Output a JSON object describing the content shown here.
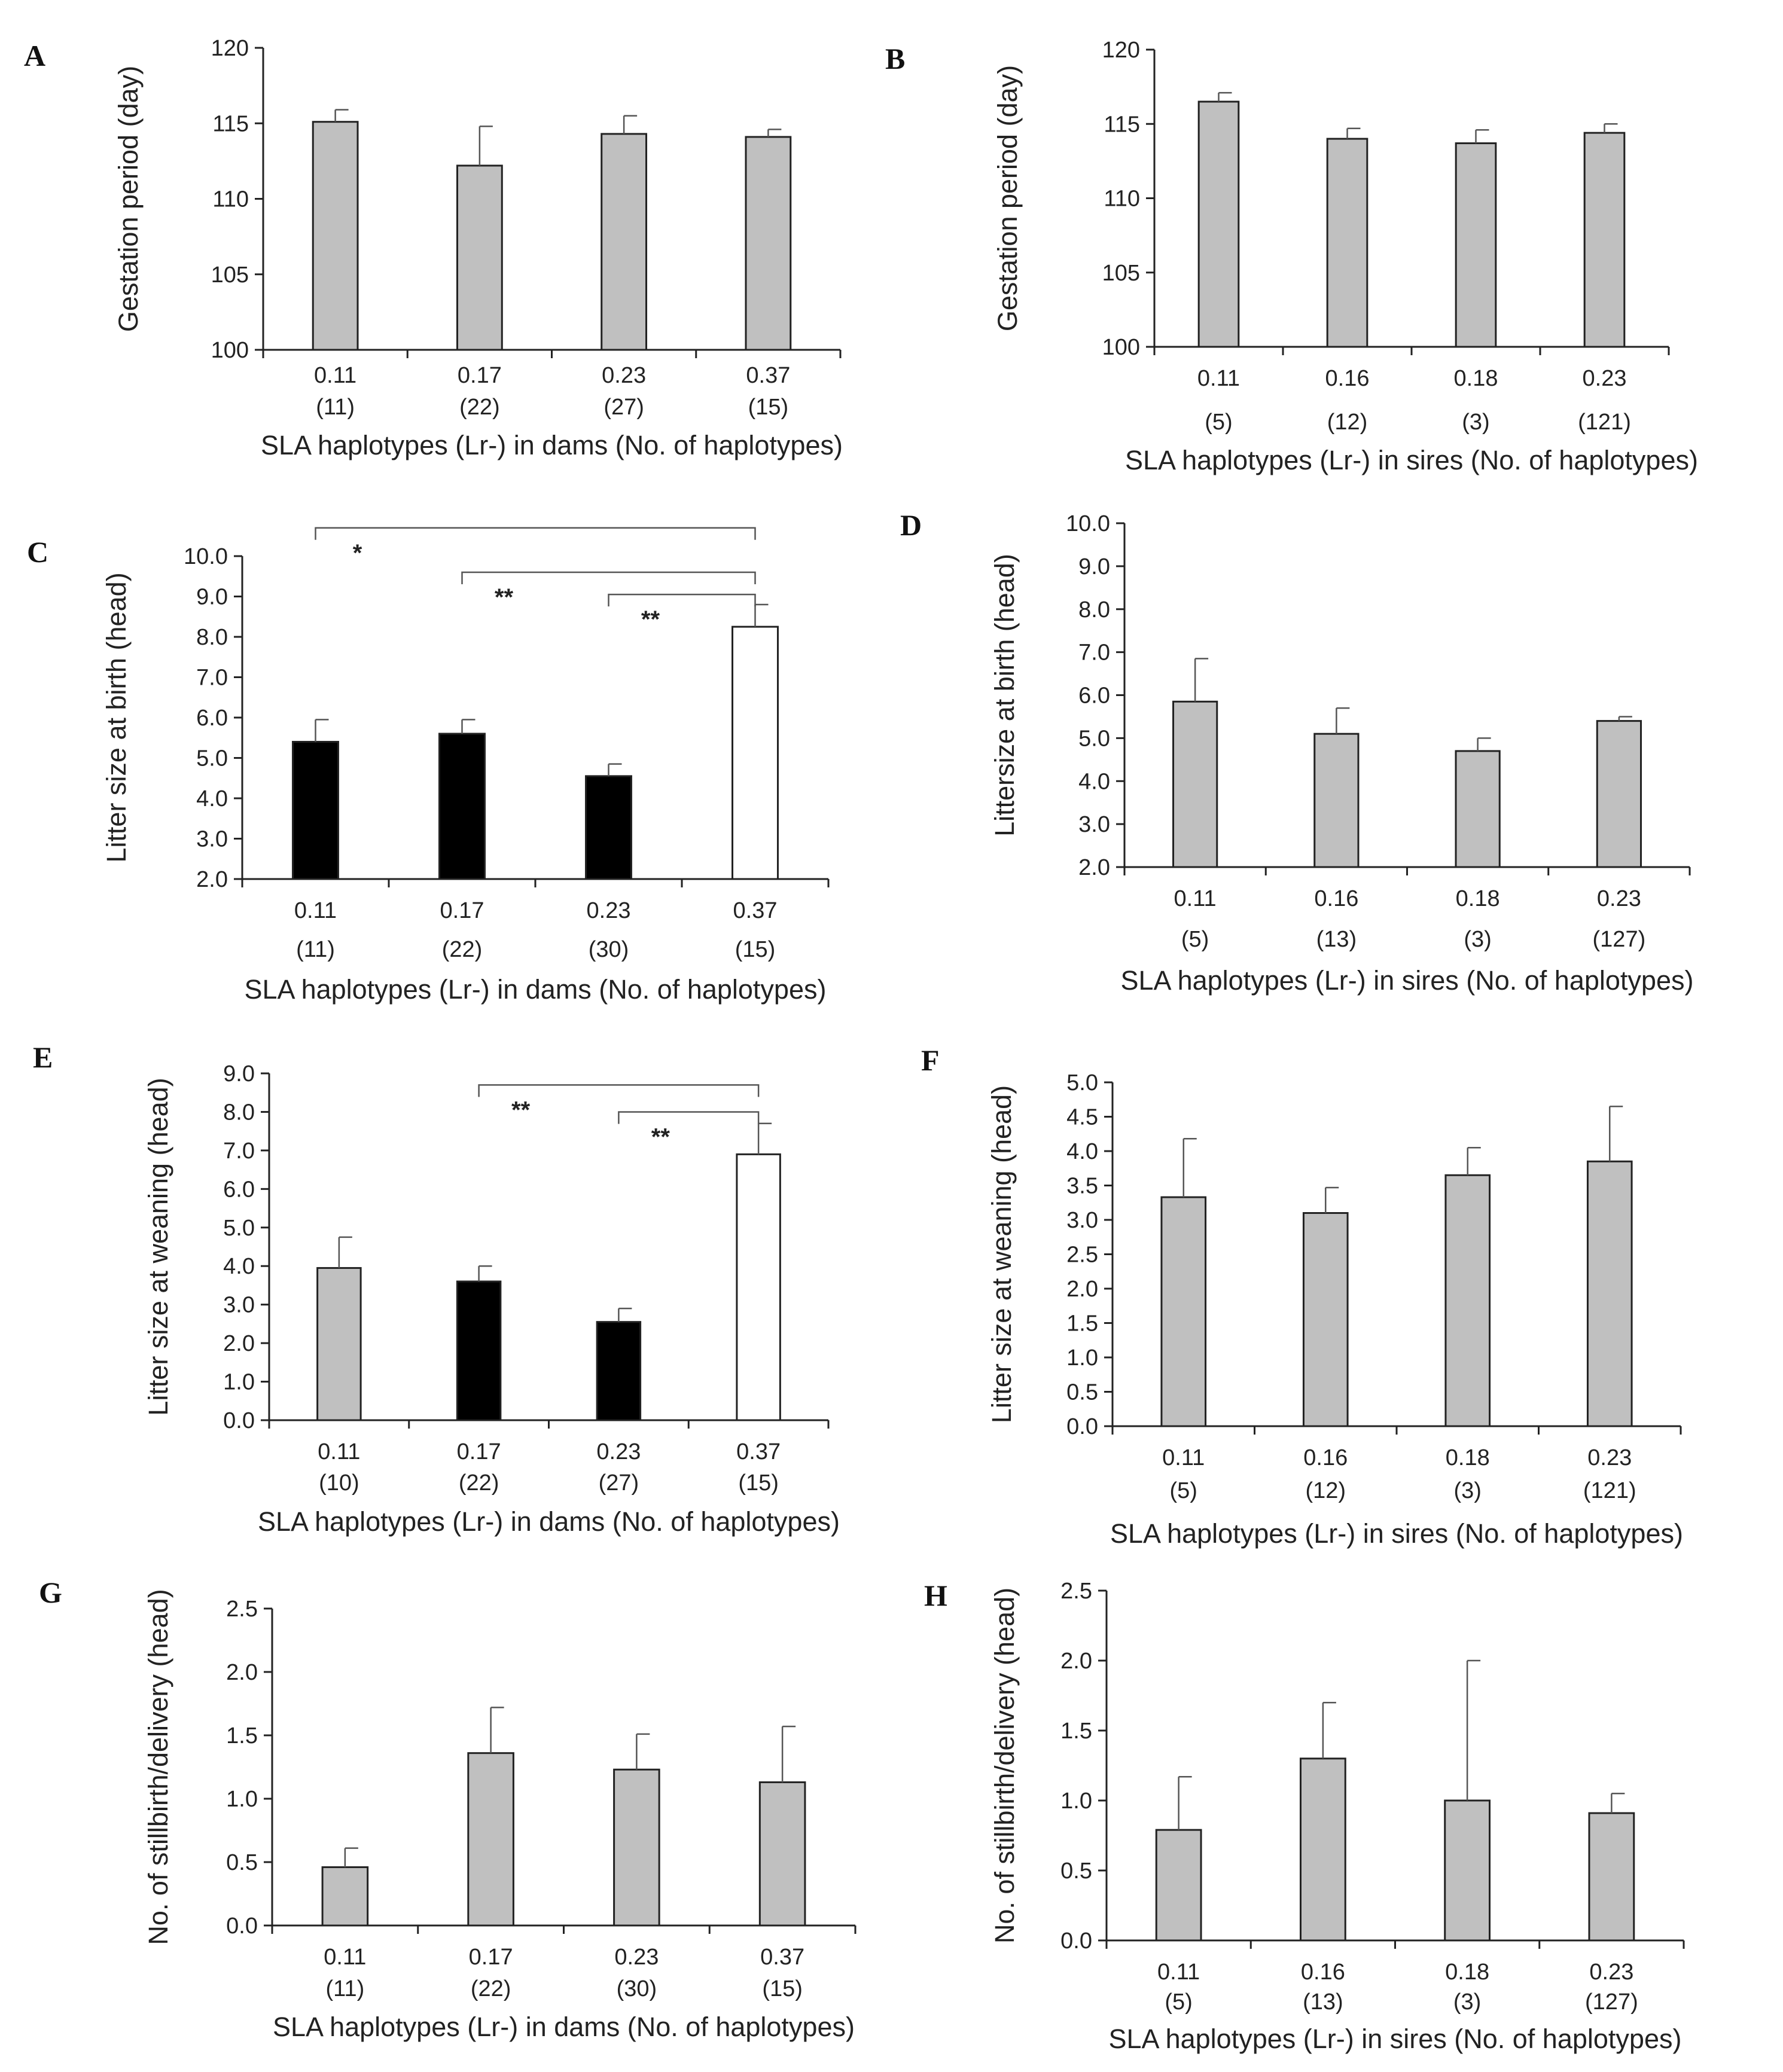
{
  "colors": {
    "gray": "#c0c0c0",
    "black": "#000000",
    "white": "#ffffff",
    "stroke": "#222222"
  },
  "chart_data": [
    {
      "panel": "A",
      "type": "bar",
      "categories": [
        "0.11",
        "0.17",
        "0.23",
        "0.37"
      ],
      "counts": [
        "(11)",
        "(22)",
        "(27)",
        "(15)"
      ],
      "values": [
        115.1,
        112.2,
        114.3,
        114.1
      ],
      "errors": [
        0.8,
        2.6,
        1.2,
        0.5
      ],
      "bar_colors": [
        "gray",
        "gray",
        "gray",
        "gray"
      ],
      "ylim": [
        100,
        120
      ],
      "yticks": [
        "100",
        "105",
        "110",
        "115",
        "120"
      ],
      "ylabel": "Gestation period (day)",
      "xlabel": "SLA haplotypes (Lr-) in dams (No. of haplotypes)",
      "significance": []
    },
    {
      "panel": "B",
      "type": "bar",
      "categories": [
        "0.11",
        "0.16",
        "0.18",
        "0.23"
      ],
      "counts": [
        "(5)",
        "(12)",
        "(3)",
        "(121)"
      ],
      "values": [
        116.5,
        114.0,
        113.7,
        114.4
      ],
      "errors": [
        0.6,
        0.7,
        0.9,
        0.6
      ],
      "bar_colors": [
        "gray",
        "gray",
        "gray",
        "gray"
      ],
      "ylim": [
        100,
        120
      ],
      "yticks": [
        "100",
        "105",
        "110",
        "115",
        "120"
      ],
      "ylabel": "Gestation period (day)",
      "xlabel": "SLA haplotypes (Lr-) in sires (No. of haplotypes)",
      "significance": []
    },
    {
      "panel": "C",
      "type": "bar",
      "categories": [
        "0.11",
        "0.17",
        "0.23",
        "0.37"
      ],
      "counts": [
        "(11)",
        "(22)",
        "(30)",
        "(15)"
      ],
      "values": [
        5.4,
        5.6,
        4.55,
        8.25
      ],
      "errors": [
        0.55,
        0.35,
        0.3,
        0.55
      ],
      "bar_colors": [
        "black",
        "black",
        "black",
        "white"
      ],
      "ylim": [
        2.0,
        10.0
      ],
      "yticks": [
        "2.0",
        "3.0",
        "4.0",
        "5.0",
        "6.0",
        "7.0",
        "8.0",
        "9.0",
        "10.0"
      ],
      "ylabel": "Litter size at birth (head)",
      "xlabel": "SLA haplotypes (Lr-) in dams (No. of haplotypes)",
      "significance": [
        {
          "from": 0,
          "to": 3,
          "label": "*",
          "level": 10.7
        },
        {
          "from": 1,
          "to": 3,
          "label": "**",
          "level": 9.6
        },
        {
          "from": 2,
          "to": 3,
          "label": "**",
          "level": 9.05
        }
      ]
    },
    {
      "panel": "D",
      "type": "bar",
      "categories": [
        "0.11",
        "0.16",
        "0.18",
        "0.23"
      ],
      "counts": [
        "(5)",
        "(13)",
        "(3)",
        "(127)"
      ],
      "values": [
        5.85,
        5.1,
        4.7,
        5.4
      ],
      "errors": [
        1.0,
        0.6,
        0.3,
        0.1
      ],
      "bar_colors": [
        "gray",
        "gray",
        "gray",
        "gray"
      ],
      "ylim": [
        2.0,
        10.0
      ],
      "yticks": [
        "2.0",
        "3.0",
        "4.0",
        "5.0",
        "6.0",
        "7.0",
        "8.0",
        "9.0",
        "10.0"
      ],
      "ylabel": "Littersize at birth (head)",
      "xlabel": "SLA haplotypes (Lr-) in sires (No. of haplotypes)",
      "significance": []
    },
    {
      "panel": "E",
      "type": "bar",
      "categories": [
        "0.11",
        "0.17",
        "0.23",
        "0.37"
      ],
      "counts": [
        "(10)",
        "(22)",
        "(27)",
        "(15)"
      ],
      "values": [
        3.95,
        3.6,
        2.55,
        6.9
      ],
      "errors": [
        0.8,
        0.4,
        0.35,
        0.8
      ],
      "bar_colors": [
        "gray",
        "black",
        "black",
        "white"
      ],
      "ylim": [
        0.0,
        9.0
      ],
      "yticks": [
        "0.0",
        "1.0",
        "2.0",
        "3.0",
        "4.0",
        "5.0",
        "6.0",
        "7.0",
        "8.0",
        "9.0"
      ],
      "ylabel": "Litter size at weaning (head)",
      "xlabel": "SLA haplotypes (Lr-) in dams (No. of haplotypes)",
      "significance": [
        {
          "from": 1,
          "to": 3,
          "label": "**",
          "level": 8.7
        },
        {
          "from": 2,
          "to": 3,
          "label": "**",
          "level": 8.0
        }
      ]
    },
    {
      "panel": "F",
      "type": "bar",
      "categories": [
        "0.11",
        "0.16",
        "0.18",
        "0.23"
      ],
      "counts": [
        "(5)",
        "(12)",
        "(3)",
        "(121)"
      ],
      "values": [
        3.33,
        3.1,
        3.65,
        3.85
      ],
      "errors": [
        0.85,
        0.37,
        0.4,
        0.8
      ],
      "bar_colors": [
        "gray",
        "gray",
        "gray",
        "gray"
      ],
      "ylim": [
        0.0,
        5.0
      ],
      "yticks": [
        "0.0",
        "0.5",
        "1.0",
        "1.5",
        "2.0",
        "2.5",
        "3.0",
        "3.5",
        "4.0",
        "4.5",
        "5.0"
      ],
      "ylabel": "Litter size at weaning (head)",
      "xlabel": "SLA haplotypes (Lr-) in sires (No. of haplotypes)",
      "significance": []
    },
    {
      "panel": "G",
      "type": "bar",
      "categories": [
        "0.11",
        "0.17",
        "0.23",
        "0.37"
      ],
      "counts": [
        "(11)",
        "(22)",
        "(30)",
        "(15)"
      ],
      "values": [
        0.46,
        1.36,
        1.23,
        1.13
      ],
      "errors": [
        0.15,
        0.36,
        0.28,
        0.44
      ],
      "bar_colors": [
        "gray",
        "gray",
        "gray",
        "gray"
      ],
      "ylim": [
        0.0,
        2.5
      ],
      "yticks": [
        "0.0",
        "0.5",
        "1.0",
        "1.5",
        "2.0",
        "2.5"
      ],
      "ylabel": "No. of stillbirth/delivery  (head)",
      "xlabel": "SLA haplotypes (Lr-) in dams (No. of haplotypes)",
      "significance": []
    },
    {
      "panel": "H",
      "type": "bar",
      "categories": [
        "0.11",
        "0.16",
        "0.18",
        "0.23"
      ],
      "counts": [
        "(5)",
        "(13)",
        "(3)",
        "(127)"
      ],
      "values": [
        0.79,
        1.3,
        1.0,
        0.91
      ],
      "errors": [
        0.38,
        0.4,
        1.0,
        0.14
      ],
      "bar_colors": [
        "gray",
        "gray",
        "gray",
        "gray"
      ],
      "ylim": [
        0.0,
        2.5
      ],
      "yticks": [
        "0.0",
        "0.5",
        "1.0",
        "1.5",
        "2.0",
        "2.5"
      ],
      "ylabel": "No. of stillbirth/delivery  (head)",
      "xlabel": "SLA haplotypes (Lr-) in sires (No. of haplotypes)",
      "significance": []
    }
  ]
}
